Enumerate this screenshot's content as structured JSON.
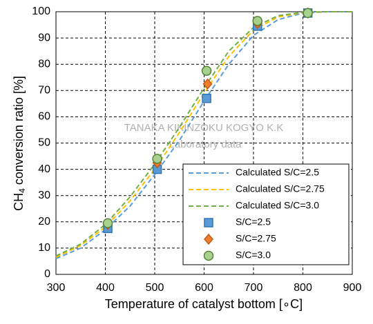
{
  "chart_data": {
    "type": "mixed",
    "x_label": "Temperature of catalyst bottom [∘C]",
    "y_label": {
      "main": "CH",
      "sub": "4",
      "rest": " conversion ratio [%]"
    },
    "annotations": [
      "TANAKA KIKINZOKU KOGYO K.K",
      "Laboratory data"
    ],
    "xlim": [
      300,
      900
    ],
    "xticks": [
      300,
      400,
      500,
      600,
      700,
      800,
      900
    ],
    "ylim": [
      0,
      100
    ],
    "yticks": [
      0,
      10,
      20,
      30,
      40,
      50,
      60,
      70,
      80,
      90,
      100
    ],
    "grid": true,
    "legend": "lower right",
    "series": [
      {
        "name": "Calculated S/C=2.5",
        "type": "line",
        "color": "#5b9bd5",
        "x": [
          300,
          350,
          400,
          450,
          500,
          550,
          600,
          650,
          700,
          750,
          800,
          850,
          900
        ],
        "values": [
          6,
          10,
          17,
          26,
          38,
          51,
          66,
          80,
          91,
          97,
          99.5,
          100,
          100
        ]
      },
      {
        "name": "Calculated S/C=2.75",
        "type": "line",
        "color": "#ffc000",
        "x": [
          300,
          350,
          400,
          450,
          500,
          550,
          600,
          650,
          700,
          750,
          800,
          850,
          900
        ],
        "values": [
          6.5,
          11,
          18,
          28,
          40,
          54,
          69,
          83,
          93,
          98,
          99.7,
          100,
          100
        ]
      },
      {
        "name": "Calculated S/C=3.0",
        "type": "line",
        "color": "#70ad47",
        "x": [
          300,
          350,
          400,
          450,
          500,
          550,
          600,
          650,
          700,
          750,
          800,
          850,
          900
        ],
        "values": [
          7,
          11.5,
          19,
          29.5,
          42,
          56,
          71,
          85,
          94,
          98.5,
          99.8,
          100,
          100
        ]
      },
      {
        "name": "S/C=2.5",
        "type": "scatter",
        "marker": "square",
        "color": "#5b9bd5",
        "edgecolor": "#2e75b6",
        "x": [
          405,
          505,
          605,
          708,
          810
        ],
        "values": [
          17.5,
          40,
          67,
          94.5,
          99.5
        ]
      },
      {
        "name": "S/C=2.75",
        "type": "scatter",
        "marker": "diamond",
        "color": "#ed7d31",
        "edgecolor": "#c55a11",
        "x": [
          405,
          505,
          607,
          708,
          810
        ],
        "values": [
          19,
          42.5,
          72.5,
          95.5,
          99.5
        ]
      },
      {
        "name": "S/C=3.0",
        "type": "scatter",
        "marker": "circle",
        "color": "#a9d18e",
        "edgecolor": "#548235",
        "x": [
          405,
          505,
          605,
          708,
          810
        ],
        "values": [
          19.5,
          44,
          77.5,
          96.5,
          99.5
        ]
      }
    ]
  }
}
